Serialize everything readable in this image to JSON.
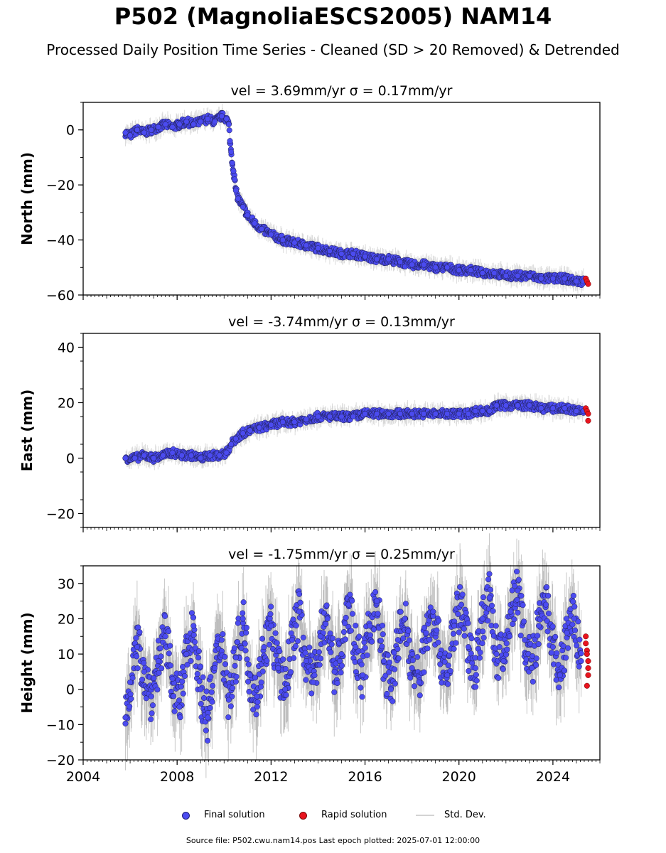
{
  "title": "P502 (MagnoliaESCS2005) NAM14",
  "subtitle": "Processed Daily Position Time Series - Cleaned (SD > 20 Removed) & Detrended",
  "chart_data": [
    {
      "type": "scatter",
      "title": "vel = 3.69mm/yr   σ = 0.17mm/yr",
      "ylabel": "North (mm)",
      "xlim": [
        2004,
        2026
      ],
      "ylim": [
        -60,
        10
      ],
      "yticks": [
        0,
        -20,
        -40,
        -60
      ],
      "xticks": [
        2004,
        2008,
        2012,
        2016,
        2020,
        2024
      ],
      "show_xtick_labels": false,
      "series": [
        {
          "role": "final",
          "x": [
            2005.8,
            2006.0,
            2006.3,
            2006.6,
            2006.9,
            2007.2,
            2007.5,
            2007.8,
            2008.1,
            2008.4,
            2008.7,
            2009.0,
            2009.3,
            2009.6,
            2009.9,
            2010.1,
            2010.2,
            2010.25,
            2010.3,
            2010.35,
            2010.4,
            2010.45,
            2010.5,
            2010.6,
            2010.8,
            2011.0,
            2011.3,
            2011.6,
            2012.0,
            2012.5,
            2013.0,
            2013.5,
            2014.0,
            2014.5,
            2015.0,
            2015.5,
            2016.0,
            2016.5,
            2017.0,
            2017.5,
            2018.0,
            2018.5,
            2019.0,
            2019.5,
            2020.0,
            2020.5,
            2021.0,
            2021.5,
            2022.0,
            2022.5,
            2023.0,
            2023.5,
            2024.0,
            2024.5,
            2025.0,
            2025.3
          ],
          "y": [
            -1,
            -2,
            0,
            -1,
            0,
            1,
            2,
            1,
            2,
            3,
            2,
            3,
            4,
            3,
            5,
            4,
            2,
            -4,
            -8,
            -12,
            -15,
            -18,
            -22,
            -25,
            -28,
            -31,
            -34,
            -36,
            -38,
            -40,
            -41,
            -42,
            -43,
            -44,
            -45,
            -45,
            -46,
            -47,
            -47,
            -48,
            -49,
            -49,
            -50,
            -50,
            -51,
            -51,
            -52,
            -52,
            -53,
            -53,
            -53,
            -54,
            -54,
            -54,
            -55,
            -55
          ]
        },
        {
          "role": "rapid",
          "x": [
            2025.4,
            2025.45,
            2025.5
          ],
          "y": [
            -54,
            -55,
            -56
          ]
        }
      ]
    },
    {
      "type": "scatter",
      "title": "vel = -3.74mm/yr   σ = 0.13mm/yr",
      "ylabel": "East (mm)",
      "xlim": [
        2004,
        2026
      ],
      "ylim": [
        -25,
        45
      ],
      "yticks": [
        40,
        20,
        0,
        -20
      ],
      "xticks": [
        2004,
        2008,
        2012,
        2016,
        2020,
        2024
      ],
      "show_xtick_labels": false,
      "series": [
        {
          "role": "final",
          "x": [
            2005.8,
            2006.2,
            2006.6,
            2007.0,
            2007.4,
            2007.8,
            2008.2,
            2008.6,
            2009.0,
            2009.4,
            2009.8,
            2010.1,
            2010.3,
            2010.5,
            2010.8,
            2011.1,
            2011.5,
            2012.0,
            2012.5,
            2013.0,
            2013.5,
            2014.0,
            2014.5,
            2015.0,
            2015.5,
            2016.0,
            2016.5,
            2017.0,
            2017.5,
            2018.0,
            2018.5,
            2019.0,
            2019.5,
            2020.0,
            2020.4,
            2020.7,
            2021.0,
            2021.3,
            2021.6,
            2022.0,
            2022.5,
            2023.0,
            2023.5,
            2024.0,
            2024.5,
            2025.0,
            2025.3
          ],
          "y": [
            0,
            0,
            1,
            0,
            1,
            2,
            1,
            1,
            0,
            1,
            1,
            2,
            5,
            7,
            9,
            10,
            11,
            12,
            13,
            13,
            14,
            15,
            15,
            15,
            15,
            16,
            16,
            16,
            16,
            16,
            16,
            16,
            16,
            16,
            16,
            17,
            17,
            17,
            19,
            19,
            19,
            19,
            18,
            18,
            18,
            17,
            17
          ]
        },
        {
          "role": "rapid",
          "x": [
            2025.4,
            2025.45,
            2025.5,
            2025.5
          ],
          "y": [
            18,
            17,
            16,
            13.5
          ]
        }
      ]
    },
    {
      "type": "scatter",
      "title": "vel = -1.75mm/yr   σ = 0.25mm/yr",
      "ylabel": "Height (mm)",
      "xlim": [
        2004,
        2026
      ],
      "ylim": [
        -20,
        35
      ],
      "yticks": [
        30,
        20,
        10,
        0,
        -10,
        -20
      ],
      "xticks": [
        2004,
        2008,
        2012,
        2016,
        2020,
        2024
      ],
      "show_xtick_labels": true,
      "series": [
        {
          "role": "final",
          "x": [
            2005.8,
            2006.0,
            2006.3,
            2006.6,
            2006.9,
            2007.2,
            2007.5,
            2007.8,
            2008.1,
            2008.4,
            2008.7,
            2009.0,
            2009.3,
            2009.6,
            2009.9,
            2010.2,
            2010.5,
            2010.8,
            2011.1,
            2011.4,
            2011.7,
            2012.0,
            2012.3,
            2012.6,
            2012.9,
            2013.2,
            2013.5,
            2013.8,
            2014.1,
            2014.4,
            2014.7,
            2015.0,
            2015.3,
            2015.6,
            2015.9,
            2016.2,
            2016.5,
            2016.8,
            2017.1,
            2017.4,
            2017.7,
            2018.0,
            2018.3,
            2018.6,
            2018.9,
            2019.2,
            2019.5,
            2019.8,
            2020.1,
            2020.4,
            2020.7,
            2021.0,
            2021.3,
            2021.6,
            2021.9,
            2022.2,
            2022.5,
            2022.8,
            2023.1,
            2023.4,
            2023.7,
            2024.0,
            2024.3,
            2024.6,
            2024.9,
            2025.2
          ],
          "y": [
            -8,
            2,
            12,
            5,
            -2,
            8,
            15,
            3,
            -5,
            10,
            18,
            0,
            -8,
            6,
            14,
            -3,
            9,
            20,
            4,
            -2,
            12,
            18,
            6,
            0,
            14,
            22,
            8,
            2,
            15,
            20,
            5,
            10,
            24,
            12,
            4,
            18,
            25,
            8,
            0,
            14,
            20,
            6,
            2,
            16,
            22,
            10,
            4,
            18,
            24,
            12,
            6,
            20,
            26,
            10,
            8,
            22,
            28,
            14,
            6,
            18,
            24,
            12,
            4,
            16,
            20,
            8
          ]
        },
        {
          "role": "rapid",
          "x": [
            2025.4,
            2025.4,
            2025.45,
            2025.45,
            2025.5,
            2025.5,
            2025.5,
            2025.45
          ],
          "y": [
            15,
            13,
            11,
            10,
            8,
            6,
            4,
            1
          ]
        }
      ]
    }
  ],
  "legend": {
    "final_label": "Final solution",
    "rapid_label": "Rapid solution",
    "std_label": "Std. Dev."
  },
  "colors": {
    "final": "#4b4bf0",
    "rapid": "#e8141e",
    "std": "#d3d3d3"
  },
  "source_text": "Source file: P502.cwu.nam14.pos  Last epoch plotted: 2025-07-01 12:00:00"
}
